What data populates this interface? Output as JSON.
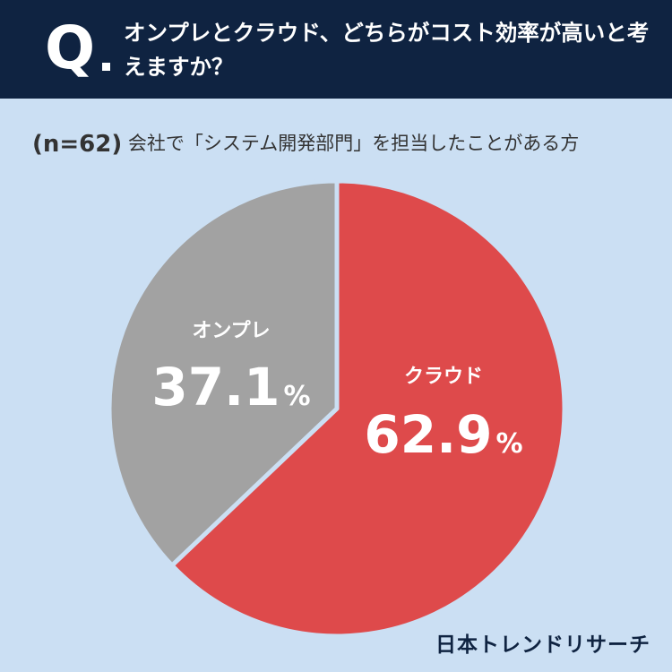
{
  "header": {
    "q_mark": "Q",
    "question": "オンプレとクラウド、どちらがコスト効率が高いと考えますか？"
  },
  "subtitle": {
    "n": "(n=62)",
    "text": " 会社で「システム開発部門」を担当したことがある方"
  },
  "chart_data": {
    "type": "pie",
    "title": "オンプレとクラウド、どちらがコスト効率が高いと考えますか？",
    "subtitle": "(n=62) 会社で「システム開発部門」を担当したことがある方",
    "slices": [
      {
        "label": "クラウド",
        "value": 62.9,
        "display": "62.9",
        "color": "#de4a4b"
      },
      {
        "label": "オンプレ",
        "value": 37.1,
        "display": "37.1",
        "color": "#a2a2a2"
      }
    ],
    "unit": "%",
    "start": "12 o'clock",
    "direction": "clockwise"
  },
  "brand": "日本トレンドリサーチ"
}
